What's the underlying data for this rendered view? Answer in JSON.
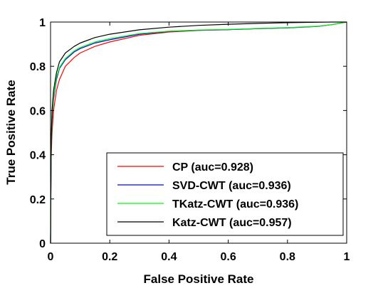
{
  "chart_data": {
    "type": "line",
    "title": "",
    "xlabel": "False Positive Rate",
    "ylabel": "True Positive Rate",
    "xlim": [
      0,
      1
    ],
    "ylim": [
      0,
      1
    ],
    "xticks": [
      0,
      0.2,
      0.4,
      0.6,
      0.8,
      1
    ],
    "yticks": [
      0,
      0.2,
      0.4,
      0.6,
      0.8,
      1
    ],
    "xtick_labels": [
      "0",
      "0.2",
      "0.4",
      "0.6",
      "0.8",
      "1"
    ],
    "ytick_labels": [
      "0",
      "0.2",
      "0.4",
      "0.6",
      "0.8",
      "1"
    ],
    "grid": false,
    "legend_position": "bottom-right",
    "series": [
      {
        "name": "CP (auc=0.928)",
        "color": "#ff0000",
        "x": [
          0,
          0.002,
          0.005,
          0.01,
          0.02,
          0.03,
          0.05,
          0.08,
          0.1,
          0.15,
          0.2,
          0.3,
          0.4,
          0.5,
          0.6,
          0.7,
          0.8,
          0.9,
          0.95,
          1.0
        ],
        "y": [
          0,
          0.38,
          0.5,
          0.6,
          0.69,
          0.74,
          0.8,
          0.84,
          0.86,
          0.89,
          0.91,
          0.94,
          0.955,
          0.962,
          0.966,
          0.97,
          0.974,
          0.98,
          0.988,
          1.0
        ]
      },
      {
        "name": "SVD-CWT (auc=0.936)",
        "color": "#0000ff",
        "x": [
          0,
          0.002,
          0.005,
          0.01,
          0.02,
          0.03,
          0.05,
          0.08,
          0.1,
          0.15,
          0.2,
          0.3,
          0.4,
          0.5,
          0.6,
          0.7,
          0.8,
          0.9,
          0.95,
          1.0
        ],
        "y": [
          0,
          0.42,
          0.56,
          0.65,
          0.74,
          0.79,
          0.83,
          0.865,
          0.88,
          0.905,
          0.92,
          0.945,
          0.958,
          0.963,
          0.966,
          0.97,
          0.974,
          0.98,
          0.988,
          1.0
        ]
      },
      {
        "name": "TKatz-CWT (auc=0.936)",
        "color": "#00ff00",
        "x": [
          0,
          0.002,
          0.005,
          0.01,
          0.02,
          0.03,
          0.05,
          0.08,
          0.1,
          0.15,
          0.2,
          0.3,
          0.4,
          0.5,
          0.6,
          0.7,
          0.8,
          0.9,
          0.95,
          1.0
        ],
        "y": [
          0,
          0.43,
          0.57,
          0.66,
          0.75,
          0.795,
          0.835,
          0.87,
          0.885,
          0.91,
          0.925,
          0.948,
          0.959,
          0.964,
          0.967,
          0.971,
          0.975,
          0.981,
          0.988,
          1.0
        ]
      },
      {
        "name": "Katz-CWT (auc=0.957)",
        "color": "#000000",
        "x": [
          0,
          0.002,
          0.005,
          0.01,
          0.02,
          0.03,
          0.05,
          0.08,
          0.1,
          0.15,
          0.2,
          0.3,
          0.4,
          0.5,
          0.6,
          0.7,
          0.8,
          0.9,
          0.95,
          1.0
        ],
        "y": [
          0,
          0.46,
          0.6,
          0.69,
          0.77,
          0.82,
          0.86,
          0.89,
          0.905,
          0.93,
          0.945,
          0.965,
          0.977,
          0.985,
          0.99,
          0.994,
          0.997,
          0.999,
          1.0,
          1.0
        ]
      }
    ]
  }
}
